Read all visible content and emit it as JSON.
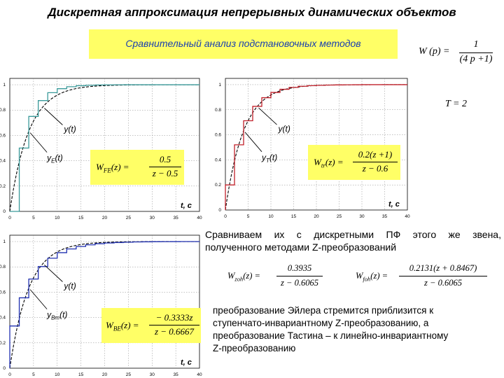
{
  "title": "Дискретная аппроксимация непрерывных динамических объектов",
  "subtitle": "Сравнительный анализ подстановочных методов",
  "transfer_function": {
    "lhs": "W (p) =",
    "num": "1",
    "den": "(4 p +1)"
  },
  "period": "T = 2",
  "compare_text_line1": "Сравниваем их с дискретными ПФ этого же звена,",
  "compare_text_line2": "полученного методами Z-преобразований",
  "conclusion_lines": [
    "преобразование Эйлера стремится приблизится к",
    "ступенчато-инвариантному Z-преобразованию, а",
    "преобразование Тастина – к линейно-инвариантному",
    "Z-преобразованию"
  ],
  "formulas": {
    "fe": {
      "lhs": "W",
      "sub": "FE",
      "arg": "(z) =",
      "num": "0.5",
      "den": "z − 0.5"
    },
    "tr": {
      "lhs": "W",
      "sub": "tr",
      "arg": "(z) =",
      "num": "0.2(z +1)",
      "den": "z − 0.6"
    },
    "be": {
      "lhs": "W",
      "sub": "BE",
      "arg": "(z) =",
      "num": "− 0.3333z",
      "den": "z − 0.6667"
    },
    "zoh": {
      "lhs": "W",
      "sub": "zoh",
      "arg": "(z) =",
      "num": "0.3935",
      "den": "z − 0.6065"
    },
    "foh": {
      "lhs": "W",
      "sub": "foh",
      "arg": "(z) =",
      "num": "0.2131(z + 0.8467)",
      "den": "z − 0.6065"
    }
  },
  "chart_data": [
    {
      "type": "line",
      "name_label": "fe-chart",
      "xlim": [
        0,
        40
      ],
      "ylim": [
        0,
        1.05
      ],
      "xticks": [
        "0",
        "5",
        "10",
        "15",
        "20",
        "25",
        "30",
        "35",
        "40"
      ],
      "yticks": [
        "0",
        "0.2",
        "0.4",
        "0.6",
        "0.8",
        "1"
      ],
      "axis_label": "t, c",
      "grid": true,
      "curve_label": "y(t)",
      "discrete_label": "y",
      "discrete_sub": "E",
      "discrete_arg": "(t)",
      "T": 2,
      "tau": 4,
      "discrete_values": [
        0,
        0.5,
        0.75,
        0.875,
        0.9375,
        0.9688,
        0.9844,
        0.9922,
        0.9961,
        0.998,
        0.999,
        0.9995,
        0.9998,
        0.9999,
        1,
        1,
        1,
        1,
        1,
        1,
        1
      ],
      "curve_color": "#000000",
      "discrete_color": "#3a9a9a"
    },
    {
      "type": "line",
      "name_label": "tr-chart",
      "xlim": [
        0,
        40
      ],
      "ylim": [
        0,
        1.05
      ],
      "xticks": [
        "0",
        "5",
        "10",
        "15",
        "20",
        "25",
        "30",
        "35",
        "40"
      ],
      "yticks": [
        "0",
        "0.2",
        "0.4",
        "0.6",
        "0.8",
        "1"
      ],
      "axis_label": "t, c",
      "grid": true,
      "curve_label": "y(t)",
      "discrete_label": "y",
      "discrete_sub": "T",
      "discrete_arg": "(t)",
      "T": 2,
      "tau": 4,
      "discrete_values": [
        0.2,
        0.52,
        0.712,
        0.827,
        0.896,
        0.938,
        0.963,
        0.978,
        0.987,
        0.992,
        0.995,
        0.997,
        0.998,
        0.999,
        0.9995,
        1,
        1,
        1,
        1,
        1,
        1
      ],
      "curve_color": "#000000",
      "discrete_color": "#c0202a"
    },
    {
      "type": "line",
      "name_label": "be-chart",
      "xlim": [
        0,
        40
      ],
      "ylim": [
        0,
        1.05
      ],
      "xticks": [
        "0",
        "5",
        "10",
        "15",
        "20",
        "25",
        "30",
        "35",
        "40"
      ],
      "yticks": [
        "0",
        "0.2",
        "0.4",
        "0.6",
        "0.8",
        "1"
      ],
      "axis_label": "t, c",
      "grid": true,
      "curve_label": "y(t)",
      "discrete_label": "y",
      "discrete_sub": "Bm",
      "discrete_arg": "(t)",
      "T": 2,
      "tau": 4,
      "discrete_values": [
        0.3333,
        0.5556,
        0.7037,
        0.8025,
        0.8683,
        0.9122,
        0.9415,
        0.961,
        0.974,
        0.9827,
        0.9884,
        0.9923,
        0.9949,
        0.9966,
        0.9977,
        0.9985,
        0.999,
        0.9993,
        0.9996,
        0.9997,
        0.9998
      ],
      "curve_color": "#000000",
      "discrete_color": "#2030b0"
    }
  ]
}
